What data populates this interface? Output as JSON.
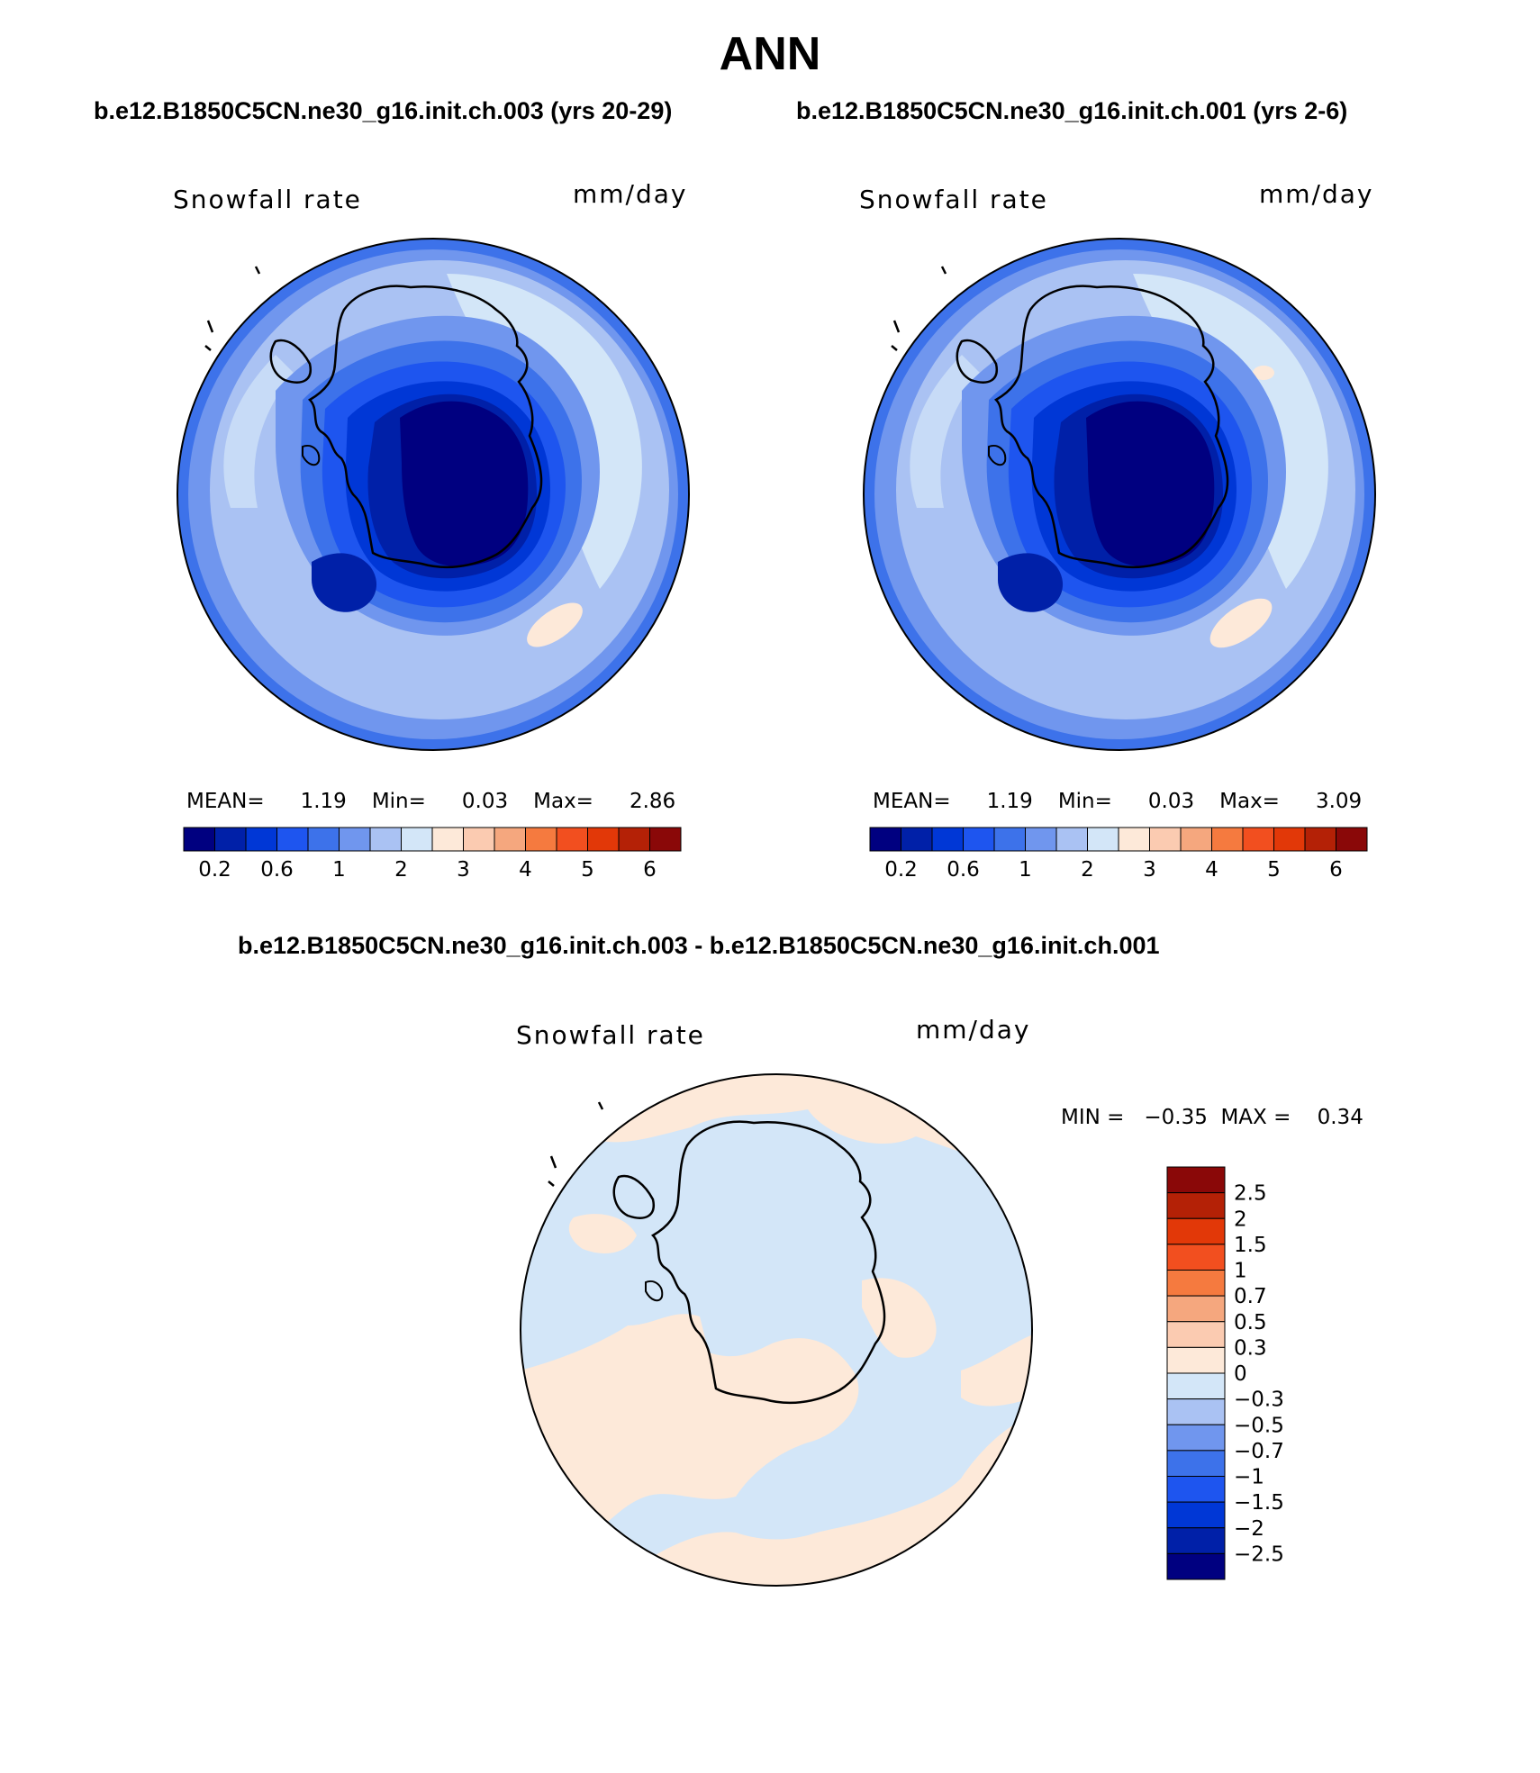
{
  "season": "ANN",
  "panels": [
    {
      "case_title": "b.e12.B1850C5CN.ne30_g16.init.ch.003 (yrs 20-29)",
      "variable": "Snowfall rate",
      "units": "mm/day",
      "stats": {
        "mean_label": "MEAN=",
        "mean": "1.19",
        "min_label": "Min=",
        "min": "0.03",
        "max_label": "Max=",
        "max": "2.86"
      }
    },
    {
      "case_title": "b.e12.B1850C5CN.ne30_g16.init.ch.001 (yrs 2-6)",
      "variable": "Snowfall rate",
      "units": "mm/day",
      "stats": {
        "mean_label": "MEAN=",
        "mean": "1.19",
        "min_label": "Min=",
        "min": "0.03",
        "max_label": "Max=",
        "max": "3.09"
      }
    }
  ],
  "colorbar_main": {
    "colors": [
      "#000080",
      "#0020a8",
      "#0037d6",
      "#1e55ef",
      "#3d72ea",
      "#7096ee",
      "#aac2f3",
      "#d3e6f8",
      "#fde9d9",
      "#fbcbb1",
      "#f5a77e",
      "#f57a3f",
      "#f24f1f",
      "#e23808",
      "#b42106",
      "#8a0808"
    ],
    "labels": [
      "0.2",
      "0.6",
      "1",
      "2",
      "3",
      "4",
      "5",
      "6"
    ]
  },
  "difference": {
    "title": "b.e12.B1850C5CN.ne30_g16.init.ch.003 - b.e12.B1850C5CN.ne30_g16.init.ch.001",
    "variable": "Snowfall rate",
    "units": "mm/day",
    "stats_text": "MIN =   −0.35  MAX =    0.34",
    "colorbar": {
      "colors": [
        "#8a0808",
        "#b42106",
        "#e23808",
        "#f24f1f",
        "#f57a3f",
        "#f5a77e",
        "#fbcbb1",
        "#fde9d9",
        "#d3e6f8",
        "#aac2f3",
        "#7096ee",
        "#3d72ea",
        "#1e55ef",
        "#0037d6",
        "#0020a8",
        "#000080"
      ],
      "labels": [
        "2.5",
        "2",
        "1.5",
        "1",
        "0.7",
        "0.5",
        "0.3",
        "0",
        "−0.3",
        "−0.5",
        "−0.7",
        "−1",
        "−1.5",
        "−2",
        "−2.5"
      ]
    }
  }
}
